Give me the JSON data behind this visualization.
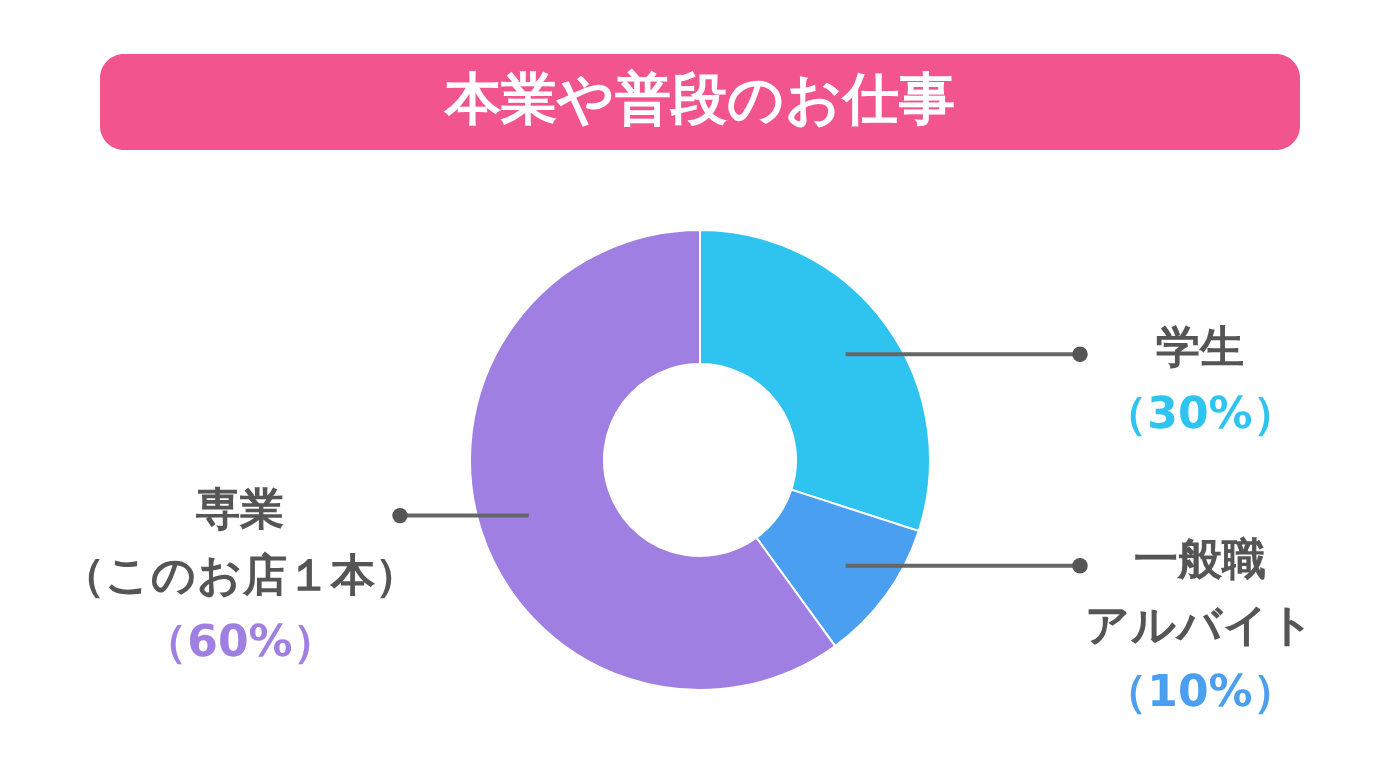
{
  "chart_data": {
    "type": "donut",
    "title": "本業や普段のお仕事",
    "categories": [
      "学生",
      "一般職アルバイト",
      "専業（このお店１本）"
    ],
    "values": [
      30,
      10,
      60
    ],
    "colors": [
      "#2ec4ef",
      "#4b9ff0",
      "#a07fe2"
    ],
    "value_labels": [
      "（30%）",
      "（10%）",
      "（60%）"
    ]
  }
}
